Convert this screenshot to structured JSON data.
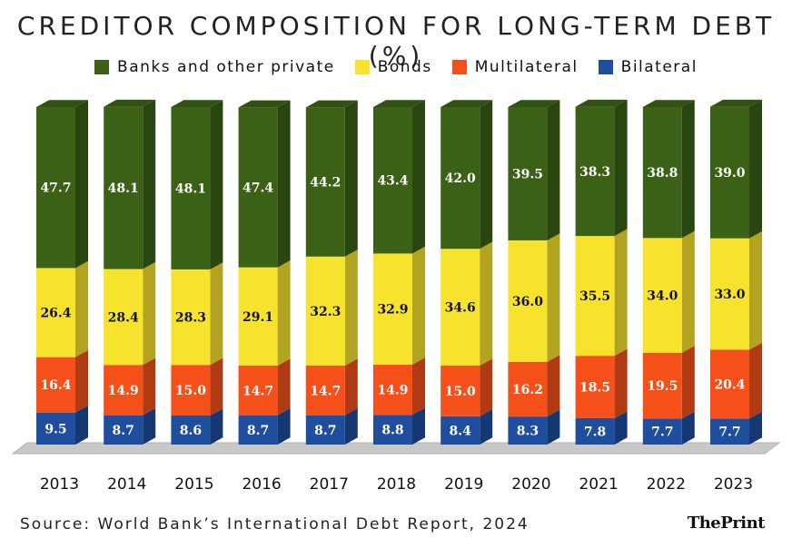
{
  "chart_data": {
    "type": "bar",
    "stacked": true,
    "title": "CREDITOR COMPOSITION FOR LONG-TERM DEBT (%)",
    "categories": [
      "2013",
      "2014",
      "2015",
      "2016",
      "2017",
      "2018",
      "2019",
      "2020",
      "2021",
      "2022",
      "2023"
    ],
    "series": [
      {
        "name": "Bilateral",
        "color": "#1f4e9f",
        "values": [
          9.5,
          8.7,
          8.6,
          8.7,
          8.7,
          8.8,
          8.4,
          8.3,
          7.8,
          7.7,
          7.7
        ]
      },
      {
        "name": "Multilateral",
        "color": "#f5501a",
        "values": [
          16.4,
          14.9,
          15.0,
          14.7,
          14.7,
          14.9,
          15.0,
          16.2,
          18.5,
          19.5,
          20.4
        ]
      },
      {
        "name": "Bonds",
        "color": "#f7e32e",
        "values": [
          26.4,
          28.4,
          28.3,
          29.1,
          32.3,
          32.9,
          34.6,
          36.0,
          35.5,
          34.0,
          33.0
        ]
      },
      {
        "name": "Banks and other private",
        "color": "#3b6116",
        "values": [
          47.7,
          48.1,
          48.1,
          47.4,
          44.2,
          43.4,
          42.0,
          39.5,
          38.3,
          38.8,
          39.0
        ]
      }
    ],
    "legend_order": [
      "Banks and other private",
      "Bonds",
      "Multilateral",
      "Bilateral"
    ],
    "ylim": [
      0,
      100
    ],
    "grid": false,
    "legend_position": "top"
  },
  "source": "Source: World Bank’s International Debt Report, 2024",
  "logo_text": "ThePrint"
}
